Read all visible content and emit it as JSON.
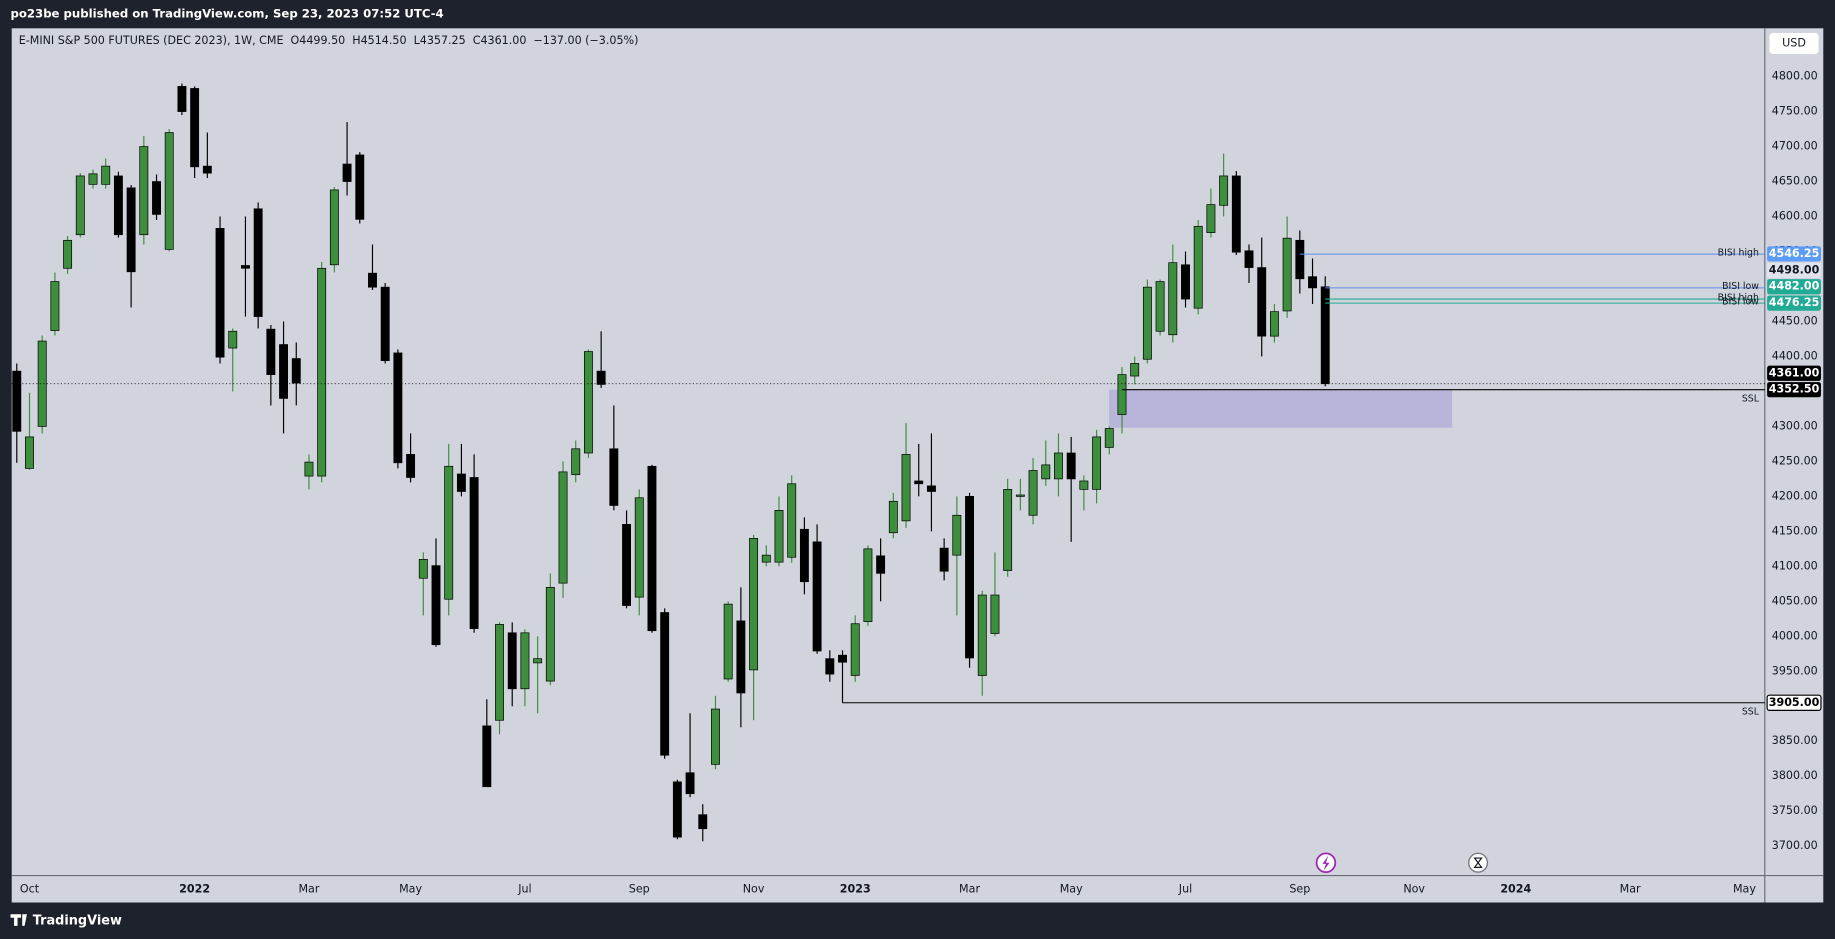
{
  "header": {
    "title": "po23be published on TradingView.com, Sep 23, 2023 07:52 UTC-4"
  },
  "footer": {
    "brand": "TradingView"
  },
  "chart_data": {
    "type": "candlestick",
    "symbol": "E-MINI S&P 500 FUTURES (DEC 2023), 1W, CME",
    "ohlc_legend": [
      "O4499.50",
      "H4514.50",
      "L4357.25",
      "C4361.00"
    ],
    "change": "−137.00 (−3.05%)",
    "currency": "USD",
    "categories": [
      null,
      "Oct",
      null,
      null,
      null,
      null,
      null,
      null,
      null,
      null,
      null,
      null,
      null,
      null,
      "2022",
      null,
      null,
      null,
      null,
      null,
      null,
      null,
      null,
      "Mar",
      null,
      null,
      null,
      null,
      null,
      null,
      null,
      "May",
      null,
      null,
      null,
      null,
      null,
      null,
      null,
      null,
      "Jul",
      null,
      null,
      null,
      null,
      null,
      null,
      null,
      null,
      "Sep",
      null,
      null,
      null,
      null,
      null,
      null,
      null,
      null,
      "Nov",
      null,
      null,
      null,
      null,
      null,
      null,
      null,
      "2023",
      null,
      null,
      null,
      null,
      null,
      null,
      null,
      null,
      "Mar",
      null,
      null,
      null,
      null,
      null,
      null,
      null,
      "May",
      null,
      null,
      null,
      null,
      null,
      null,
      null,
      null,
      "Jul",
      null,
      null,
      null,
      null,
      null,
      null,
      null,
      null,
      "Sep",
      null,
      null,
      null,
      null,
      null,
      null,
      null,
      null,
      "Nov",
      null,
      null,
      null,
      null,
      null,
      null,
      null,
      "2024",
      null,
      null,
      null,
      null,
      null,
      null,
      null,
      null,
      "Mar",
      null,
      null,
      null,
      null,
      null,
      null,
      null,
      null,
      "May",
      null
    ],
    "open": [
      4379,
      4240,
      4300,
      4437,
      4526,
      4574,
      4646,
      4646,
      4658,
      4641,
      4574,
      4650,
      4553,
      4786,
      4783,
      4672,
      4583,
      4412,
      4530,
      4611,
      4439,
      4417,
      4397,
      4229,
      4229,
      4531,
      4675,
      4688,
      4519,
      4499,
      4405,
      4260,
      4083,
      4101,
      4053,
      4232,
      4227,
      3872,
      3880,
      4005,
      3925,
      3962,
      3936,
      4076,
      4231,
      4262,
      4379,
      4268,
      4160,
      4056,
      4243,
      4034,
      3792,
      3805,
      3745,
      3817,
      3939,
      4022,
      3952,
      4106,
      4106,
      4113,
      4153,
      4135,
      3968,
      3973,
      3944,
      4021,
      4115,
      4148,
      4165,
      4222,
      4215,
      4126,
      4116,
      4200,
      3944,
      4004,
      4094,
      4200,
      4173,
      4225,
      4225,
      4262,
      4210,
      4210,
      4270,
      4317,
      4372,
      4396,
      4436,
      4431,
      4531,
      4469,
      4577,
      4616,
      4658,
      4551,
      4527,
      4429,
      4465,
      4566,
      4514,
      4499.5,
      null,
      null,
      null,
      null,
      null,
      null,
      null,
      null,
      null,
      null,
      null,
      null,
      null,
      null,
      null,
      null,
      null,
      null,
      null,
      null,
      null,
      null,
      null,
      null,
      null,
      null,
      null,
      null,
      null,
      null,
      null,
      null,
      null,
      null
    ],
    "high": [
      4390,
      4348,
      4430,
      4520,
      4572,
      4662,
      4667,
      4683,
      4664,
      4645,
      4715,
      4660,
      4725,
      4790,
      4786,
      4720,
      4600,
      4440,
      4600,
      4620,
      4445,
      4450,
      4420,
      4260,
      4535,
      4642,
      4735,
      4692,
      4560,
      4505,
      4410,
      4290,
      4120,
      4140,
      4275,
      4275,
      4260,
      3910,
      4020,
      4020,
      4010,
      4000,
      4090,
      4250,
      4280,
      4410,
      4436,
      4330,
      4180,
      4210,
      4245,
      4040,
      3795,
      3890,
      3760,
      3915,
      4050,
      4070,
      4145,
      4130,
      4200,
      4230,
      4170,
      4160,
      3980,
      3980,
      4030,
      4130,
      4140,
      4205,
      4305,
      4275,
      4290,
      4140,
      4200,
      4205,
      4065,
      4120,
      4225,
      4225,
      4255,
      4280,
      4290,
      4285,
      4230,
      4295,
      4300,
      4385,
      4400,
      4510,
      4510,
      4560,
      4550,
      4595,
      4640,
      4690,
      4665,
      4560,
      4570,
      4475,
      4600,
      4580,
      4540,
      4514.5,
      null,
      null,
      null,
      null,
      null,
      null,
      null,
      null,
      null,
      null,
      null,
      null,
      null,
      null,
      null,
      null,
      null,
      null,
      null,
      null,
      null,
      null,
      null,
      null,
      null,
      null,
      null,
      null,
      null,
      null,
      null,
      null,
      null,
      null
    ],
    "low": [
      4248,
      4238,
      4290,
      4430,
      4518,
      4570,
      4640,
      4640,
      4570,
      4470,
      4560,
      4595,
      4550,
      4745,
      4655,
      4655,
      4390,
      4350,
      4457,
      4440,
      4330,
      4290,
      4330,
      4210,
      4220,
      4520,
      4630,
      4590,
      4495,
      4390,
      4240,
      4220,
      4030,
      3985,
      4030,
      4200,
      4005,
      3785,
      3860,
      3900,
      3900,
      3890,
      3930,
      4055,
      4220,
      4255,
      4355,
      4180,
      4040,
      4030,
      4005,
      3825,
      3710,
      3770,
      3707,
      3810,
      3935,
      3870,
      3880,
      4100,
      4100,
      4105,
      4060,
      3975,
      3935,
      3905,
      3935,
      4015,
      4050,
      4140,
      4155,
      4200,
      4150,
      4080,
      4030,
      3955,
      3915,
      4000,
      4085,
      4180,
      4160,
      4215,
      4200,
      4135,
      4180,
      4190,
      4260,
      4290,
      4360,
      4390,
      4430,
      4420,
      4470,
      4460,
      4570,
      4600,
      4545,
      4505,
      4400,
      4420,
      4455,
      4490,
      4475,
      4357.25,
      null,
      null,
      null,
      null,
      null,
      null,
      null,
      null,
      null,
      null,
      null,
      null,
      null,
      null,
      null,
      null,
      null,
      null,
      null,
      null,
      null,
      null,
      null,
      null,
      null,
      null,
      null,
      null,
      null,
      null,
      null,
      null,
      null,
      null
    ],
    "close": [
      4293,
      4285,
      4422,
      4507,
      4566,
      4658,
      4661,
      4672,
      4574,
      4521,
      4700,
      4603,
      4720,
      4750,
      4671,
      4662,
      4399,
      4436,
      4526,
      4457,
      4374,
      4340,
      4362,
      4249,
      4526,
      4638,
      4650,
      4596,
      4499,
      4394,
      4248,
      4227,
      4110,
      3988,
      4243,
      4207,
      4011,
      3785,
      4017,
      3925,
      4005,
      3968,
      4070,
      4235,
      4268,
      4407,
      4360,
      4187,
      4044,
      4198,
      4008,
      3830,
      3713,
      3775,
      3725,
      3896,
      4046,
      3919,
      4140,
      4116,
      4180,
      4218,
      4078,
      3979,
      3946,
      3963,
      4018,
      4125,
      4090,
      4193,
      4260,
      4218,
      4207,
      4093,
      4173,
      3969,
      4059,
      4059,
      4210,
      4202,
      4237,
      4245,
      4262,
      4225,
      4222,
      4285,
      4297,
      4374,
      4390,
      4499,
      4507,
      4534,
      4482,
      4586,
      4617,
      4658,
      4549,
      4527,
      4429,
      4464,
      4569,
      4511,
      4498,
      4361,
      null,
      null,
      null,
      null,
      null,
      null,
      null,
      null,
      null,
      null,
      null,
      null,
      null,
      null,
      null,
      null,
      null,
      null,
      null,
      null,
      null,
      null,
      null,
      null,
      null,
      null,
      null,
      null,
      null,
      null,
      null,
      null,
      null,
      null
    ],
    "up_color": "#3d8f3d",
    "down_color": "#000000",
    "last_price_label": "4361.00",
    "ylim": [
      3658,
      4869
    ],
    "yticks": [
      {
        "value": 3700,
        "label": "3700.00"
      },
      {
        "value": 3750,
        "label": "3750.00"
      },
      {
        "value": 3800,
        "label": "3800.00"
      },
      {
        "value": 3850,
        "label": "3850.00"
      },
      {
        "value": 3900,
        "label": "3900.00"
      },
      {
        "value": 3950,
        "label": "3950.00"
      },
      {
        "value": 4000,
        "label": "4000.00"
      },
      {
        "value": 4050,
        "label": "4050.00"
      },
      {
        "value": 4100,
        "label": "4100.00"
      },
      {
        "value": 4150,
        "label": "4150.00"
      },
      {
        "value": 4200,
        "label": "4200.00"
      },
      {
        "value": 4250,
        "label": "4250.00"
      },
      {
        "value": 4300,
        "label": "4300.00"
      },
      {
        "value": 4350,
        "label": "4350.00"
      },
      {
        "value": 4400,
        "label": "4400.00"
      },
      {
        "value": 4450,
        "label": "4450.00"
      },
      {
        "value": 4500,
        "label": "4500.00"
      },
      {
        "value": 4550,
        "label": "4550.00"
      },
      {
        "value": 4600,
        "label": "4600.00"
      },
      {
        "value": 4650,
        "label": "4650.00"
      },
      {
        "value": 4700,
        "label": "4700.00"
      },
      {
        "value": 4750,
        "label": "4750.00"
      },
      {
        "value": 4800,
        "label": "4800.00"
      }
    ],
    "grid": false,
    "levels": [
      {
        "name": "BISI high",
        "value": 4546.25,
        "color": "#5b8def",
        "tag_color": "#5b9cf6",
        "tag_text_color": "#ffffff"
      },
      {
        "name": "BISI low",
        "value": 4498,
        "value_label": "4498.00",
        "color": "#5b8def",
        "tag_color": "#e0e3eb",
        "tag_text_color": "#131722"
      },
      {
        "name": "BISI high",
        "value": 4482,
        "value_label": "4482.00",
        "color": "#22ab94",
        "tag_color": "#22ab94",
        "tag_text_color": "#ffffff"
      },
      {
        "name": "BISI low",
        "value": 4476.25,
        "color": "#22ab94",
        "tag_color": "#22ab94",
        "tag_text_color": "#ffffff"
      },
      {
        "name": "SSL",
        "value": 4352.5,
        "value_label": "4352.50",
        "color": "#000000",
        "tag_color": "#000000",
        "tag_text_color": "#ffffff"
      },
      {
        "name": "SSL",
        "value": 3905,
        "value_label": "3905.00",
        "color": "#000000",
        "tag_color": "#ffffff",
        "tag_text_color": "#000000"
      }
    ],
    "zone": {
      "top": 4352.5,
      "bottom": 4298,
      "color": "#b0aad8"
    }
  }
}
